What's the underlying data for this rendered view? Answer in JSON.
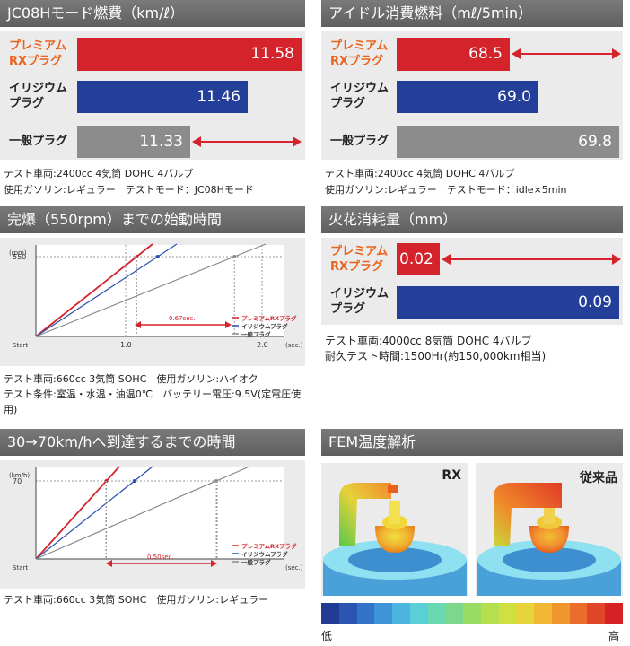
{
  "panels": {
    "fuel": {
      "title": "JC08Hモード燃費（km/ℓ）",
      "labels": [
        "プレミアム\nRXプラグ",
        "イリジウム\nプラグ",
        "一般プラグ"
      ],
      "values": [
        "11.58",
        "11.46",
        "11.33"
      ],
      "notes": [
        "テスト車両:2400cc 4気筒 DOHC 4バルブ",
        "使用ガソリン:レギュラー　テストモード：JC08Hモード"
      ]
    },
    "idle": {
      "title": "アイドル消費燃料（mℓ/5min）",
      "labels": [
        "プレミアム\nRXプラグ",
        "イリジウム\nプラグ",
        "一般プラグ"
      ],
      "values": [
        "68.5",
        "69.0",
        "69.8"
      ],
      "notes": [
        "テスト車両:2400cc 4気筒 DOHC 4バルブ",
        "使用ガソリン:レギュラー　テストモード：idle×5min"
      ]
    },
    "start": {
      "title": "完爆（550rpm）までの始動時間",
      "notes": [
        "テスト車両:660cc 3気筒 SOHC　使用ガソリン:ハイオク",
        "テスト条件:室温・水温・油温0℃　バッテリー電圧:9.5V(定電圧使",
        "用)"
      ]
    },
    "spark": {
      "title": "火花消耗量（mm）",
      "labels": [
        "プレミアム\nRXプラグ",
        "イリジウム\nプラグ"
      ],
      "values": [
        "0.02",
        "0.09"
      ],
      "notes": [
        "テスト車両:4000cc 8気筒 DOHC 4バルブ",
        "耐久テスト時間:1500Hr(約150,000km相当)"
      ]
    },
    "accel": {
      "title": "30→70km/hへ到達するまでの時間",
      "notes": [
        "テスト車両:660cc 3気筒 SOHC　使用ガソリン:レギュラー"
      ]
    },
    "fem": {
      "title": "FEM温度解析",
      "rx_label": "RX",
      "conv_label": "従来品",
      "scale_low": "低",
      "scale_high": "高"
    }
  },
  "chart_data": [
    {
      "type": "bar",
      "title": "JC08Hモード燃費（km/ℓ）",
      "categories": [
        "プレミアムRXプラグ",
        "イリジウムプラグ",
        "一般プラグ"
      ],
      "values": [
        11.58,
        11.46,
        11.33
      ]
    },
    {
      "type": "bar",
      "title": "アイドル消費燃料（mℓ/5min）",
      "categories": [
        "プレミアムRXプラグ",
        "イリジウムプラグ",
        "一般プラグ"
      ],
      "values": [
        68.5,
        69.0,
        69.8
      ]
    },
    {
      "type": "line",
      "title": "完爆（550rpm）までの始動時間",
      "ylabel": "(rpm)",
      "xlabel": "(sec.)",
      "y_ticks": [
        "550"
      ],
      "x_ticks": [
        "Start",
        "1.0",
        "2.0"
      ],
      "ylim": [
        0,
        700
      ],
      "xlim": [
        0,
        2.4
      ],
      "target": 550,
      "series": [
        {
          "name": "プレミアムRXプラグ",
          "color": "#d4232b",
          "x": [
            0,
            0.93
          ],
          "y": [
            0,
            550
          ],
          "marker_x": 0.93
        },
        {
          "name": "イリジウムプラグ",
          "color": "#2a4fae",
          "x": [
            0,
            1.12
          ],
          "y": [
            0,
            550
          ],
          "marker_x": 1.12
        },
        {
          "name": "一般プラグ",
          "color": "#8a8a8a",
          "x": [
            0,
            1.6
          ],
          "y": [
            0,
            550
          ],
          "marker_x": 1.6
        }
      ],
      "annotation": "0.67sec.",
      "legend": "lower-right"
    },
    {
      "type": "bar",
      "title": "火花消耗量（mm）",
      "categories": [
        "プレミアムRXプラグ",
        "イリジウムプラグ"
      ],
      "values": [
        0.02,
        0.09
      ]
    },
    {
      "type": "line",
      "title": "30→70km/hへ到達するまでの時間",
      "ylabel": "(km/h)",
      "xlabel": "(sec.)",
      "y_ticks": [
        "70"
      ],
      "x_ticks": [
        "Start"
      ],
      "target": 70,
      "series": [
        {
          "name": "プレミアムRXプラグ",
          "color": "#d4232b"
        },
        {
          "name": "イリジウムプラグ",
          "color": "#2a4fae"
        },
        {
          "name": "一般プラグ",
          "color": "#8a8a8a"
        }
      ],
      "annotation": "0.50sec.",
      "legend": "lower-right"
    }
  ],
  "colors": {
    "red": "#d4232b",
    "blue": "#243f9a",
    "gray": "#8c8c8c",
    "header": "#6a6a6a",
    "orange": "#e8641e"
  }
}
